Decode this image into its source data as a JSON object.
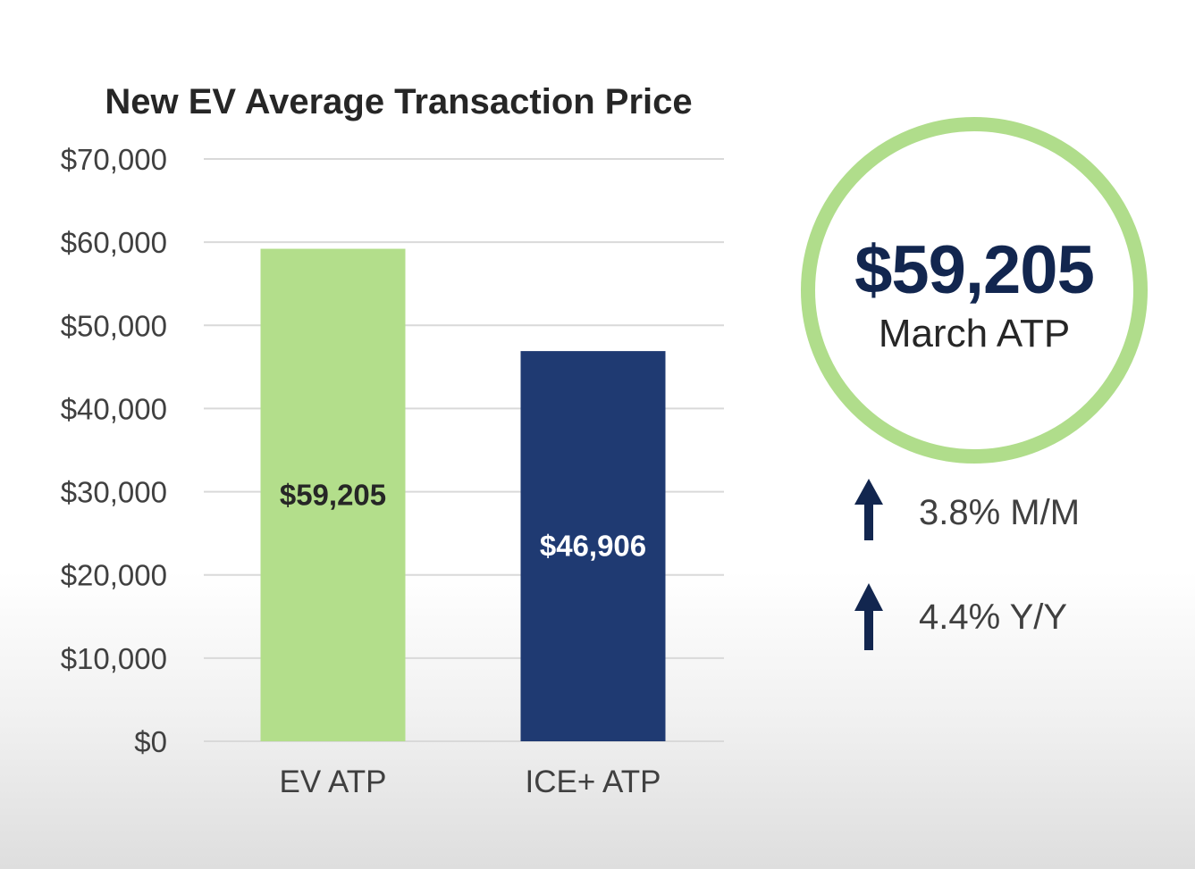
{
  "chart_data": {
    "type": "bar",
    "title": "New EV Average Transaction Price",
    "categories": [
      "EV ATP",
      "ICE+ ATP"
    ],
    "values": [
      59205,
      46906
    ],
    "data_labels": [
      "$59,205",
      "$46,906"
    ],
    "colors": [
      "#b3de8b",
      "#1f3a72"
    ],
    "label_colors": [
      "#262626",
      "#ffffff"
    ],
    "ylim": [
      0,
      70000
    ],
    "y_ticks": [
      0,
      10000,
      20000,
      30000,
      40000,
      50000,
      60000,
      70000
    ],
    "y_tick_labels": [
      "$0",
      "$10,000",
      "$20,000",
      "$30,000",
      "$40,000",
      "$50,000",
      "$60,000",
      "$70,000"
    ],
    "xlabel": "",
    "ylabel": "",
    "grid": true,
    "legend": "none"
  },
  "highlight": {
    "value": "$59,205",
    "caption": "March ATP",
    "ring_color": "#b0dd8b",
    "value_color": "#12264f"
  },
  "changes": [
    {
      "icon": "arrow-up-icon",
      "text": "3.8% M/M"
    },
    {
      "icon": "arrow-up-icon",
      "text": "4.4% Y/Y"
    }
  ]
}
